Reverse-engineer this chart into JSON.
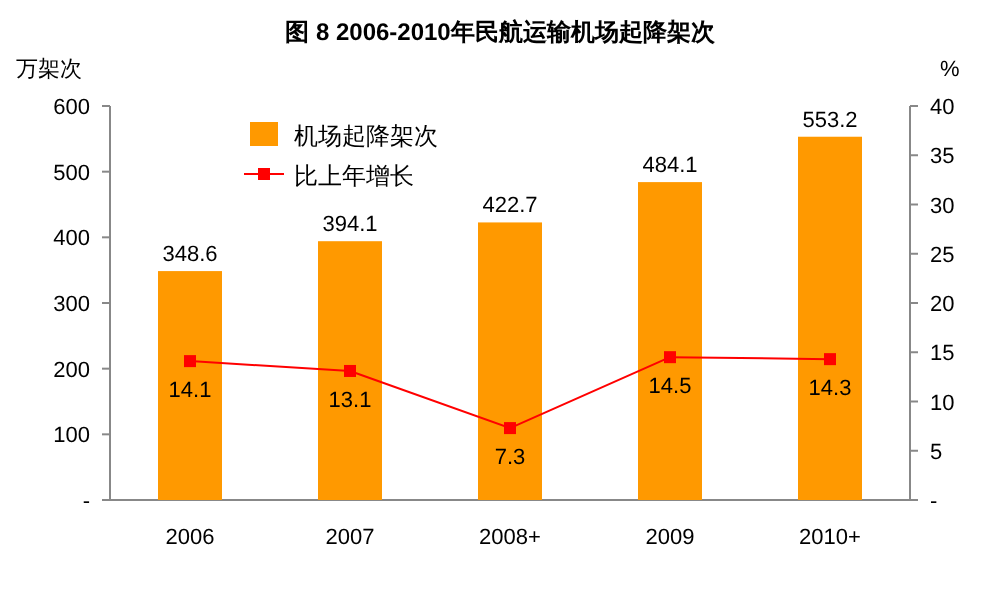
{
  "chart_data": {
    "type": "bar",
    "title": "图 8  2006-2010年民航运输机场起降架次",
    "ylabel": "万架次",
    "y2label": "%",
    "categories": [
      "2006",
      "2007",
      "2008+",
      "2009",
      "2010+"
    ],
    "series": [
      {
        "name": "机场起降架次",
        "color": "#ff9900",
        "values": [
          348.6,
          394.1,
          422.7,
          484.1,
          553.2
        ]
      },
      {
        "name": "比上年增长",
        "type": "line",
        "axis": "y2",
        "marker": "square",
        "color": "#ff0000",
        "values": [
          14.1,
          13.1,
          7.3,
          14.5,
          14.3
        ]
      }
    ],
    "ylim": [
      0,
      600
    ],
    "yticks": [
      {
        "value": 0,
        "label": "-"
      },
      100,
      200,
      300,
      400,
      500,
      600
    ],
    "y2lim": [
      0,
      40
    ],
    "y2ticks": [
      {
        "value": 0,
        "label": "-"
      },
      5,
      10,
      15,
      20,
      25,
      30,
      35,
      40
    ],
    "legend": "top left",
    "data_labels": true,
    "grid": false
  }
}
